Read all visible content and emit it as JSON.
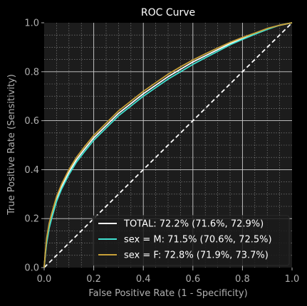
{
  "chart_data": {
    "type": "line",
    "title": "ROC Curve",
    "xlabel": "False Positive Rate (1 - Specificity)",
    "ylabel": "True Positive Rate (Sensitivity)",
    "xlim": [
      0.0,
      1.0
    ],
    "ylim": [
      0.0,
      1.0
    ],
    "xticks": [
      "0.0",
      "0.2",
      "0.4",
      "0.6",
      "0.8",
      "1.0"
    ],
    "yticks": [
      "0.0",
      "0.2",
      "0.4",
      "0.6",
      "0.8",
      "1.0"
    ],
    "grid": true,
    "minor_grid": true,
    "legend_position": "lower-right",
    "background": "#000000",
    "plot_background": "#1c1c1c",
    "chance_line": {
      "x": [
        0.0,
        1.0
      ],
      "y": [
        0.0,
        1.0
      ],
      "color": "#ffffff",
      "style": "dashed"
    },
    "series": [
      {
        "name": "TOTAL: 72.2% (71.6%, 72.9%)",
        "color": "#ffffff",
        "x": [
          0.0,
          0.005,
          0.01,
          0.02,
          0.03,
          0.05,
          0.07,
          0.1,
          0.13,
          0.16,
          0.2,
          0.25,
          0.3,
          0.35,
          0.4,
          0.45,
          0.5,
          0.55,
          0.6,
          0.65,
          0.7,
          0.75,
          0.8,
          0.85,
          0.9,
          0.95,
          1.0
        ],
        "y": [
          0.0,
          0.06,
          0.11,
          0.17,
          0.21,
          0.28,
          0.33,
          0.39,
          0.44,
          0.48,
          0.53,
          0.58,
          0.63,
          0.67,
          0.71,
          0.745,
          0.78,
          0.81,
          0.84,
          0.865,
          0.89,
          0.915,
          0.935,
          0.955,
          0.975,
          0.99,
          1.0
        ]
      },
      {
        "name": "sex = M: 71.5% (70.6%, 72.5%)",
        "color": "#40e0d0",
        "x": [
          0.0,
          0.005,
          0.01,
          0.02,
          0.03,
          0.05,
          0.07,
          0.1,
          0.13,
          0.16,
          0.2,
          0.25,
          0.3,
          0.35,
          0.4,
          0.45,
          0.5,
          0.55,
          0.6,
          0.65,
          0.7,
          0.75,
          0.8,
          0.85,
          0.9,
          0.95,
          1.0
        ],
        "y": [
          0.0,
          0.055,
          0.1,
          0.16,
          0.2,
          0.27,
          0.32,
          0.38,
          0.43,
          0.47,
          0.52,
          0.57,
          0.62,
          0.66,
          0.7,
          0.735,
          0.77,
          0.8,
          0.83,
          0.857,
          0.883,
          0.91,
          0.932,
          0.953,
          0.973,
          0.99,
          1.0
        ]
      },
      {
        "name": "sex = F: 72.8% (71.9%, 73.7%)",
        "color": "#c8a038",
        "x": [
          0.0,
          0.005,
          0.01,
          0.02,
          0.03,
          0.05,
          0.07,
          0.1,
          0.13,
          0.16,
          0.2,
          0.25,
          0.3,
          0.35,
          0.4,
          0.45,
          0.5,
          0.55,
          0.6,
          0.65,
          0.7,
          0.75,
          0.8,
          0.85,
          0.9,
          0.95,
          1.0
        ],
        "y": [
          0.0,
          0.065,
          0.12,
          0.18,
          0.22,
          0.29,
          0.34,
          0.4,
          0.45,
          0.49,
          0.54,
          0.59,
          0.64,
          0.68,
          0.72,
          0.755,
          0.79,
          0.82,
          0.848,
          0.873,
          0.897,
          0.92,
          0.94,
          0.958,
          0.977,
          0.99,
          1.0
        ]
      }
    ]
  }
}
